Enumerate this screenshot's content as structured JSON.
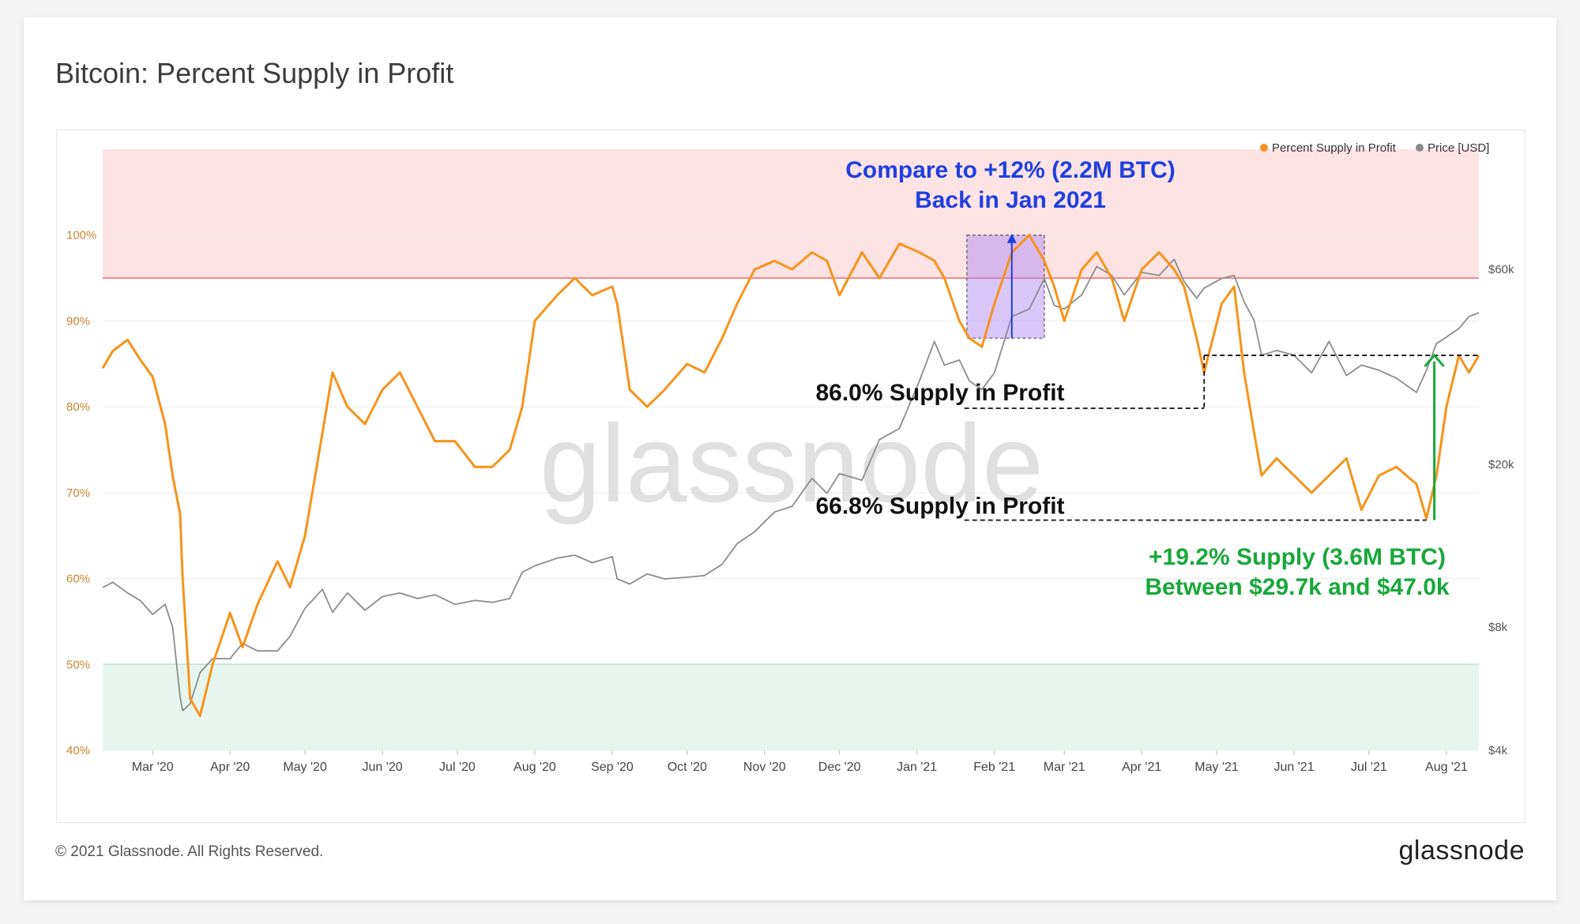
{
  "title": "Bitcoin: Percent Supply in Profit",
  "footer": {
    "copyright": "© 2021 Glassnode. All Rights Reserved.",
    "brand": "glassnode"
  },
  "watermark": "glassnode",
  "colors": {
    "supply": "#f7931a",
    "price": "#8c8c8c",
    "blue": "#1f3fe0",
    "green": "#18a83a"
  },
  "chart_data": {
    "type": "line",
    "title": "Bitcoin: Percent Supply in Profit",
    "legend": {
      "placement": "top-right",
      "items": [
        "Percent Supply in Profit",
        "Price [USD]"
      ]
    },
    "x_ticks": [
      "Mar '20",
      "Apr '20",
      "May '20",
      "Jun '20",
      "Jul '20",
      "Aug '20",
      "Sep '20",
      "Oct '20",
      "Nov '20",
      "Dec '20",
      "Jan '21",
      "Feb '21",
      "Mar '21",
      "Apr '21",
      "May '21",
      "Jun '21",
      "Jul '21",
      "Aug '21"
    ],
    "x_range": [
      "2020-02-10",
      "2021-08-14"
    ],
    "y_left": {
      "ticks": [
        "40%",
        "50%",
        "60%",
        "70%",
        "80%",
        "90%",
        "100%"
      ],
      "range": [
        40,
        110
      ]
    },
    "y_right": {
      "ticks": [
        "$4k",
        "$8k",
        "$20k",
        "$60k"
      ],
      "tick_values": [
        4000,
        8000,
        20000,
        60000
      ],
      "scale": "log",
      "range": [
        4000,
        118000
      ]
    },
    "bands": [
      {
        "from": 95,
        "to": 110,
        "color": "#fde3e3",
        "edge": "#f06a6a"
      },
      {
        "from": 40,
        "to": 50,
        "color": "#e6f6ef",
        "edge": "#6fc39b"
      }
    ],
    "series": [
      {
        "name": "Percent Supply in Profit",
        "axis": "left",
        "x": [
          "2020-02-10",
          "2020-02-14",
          "2020-02-20",
          "2020-02-25",
          "2020-03-01",
          "2020-03-06",
          "2020-03-09",
          "2020-03-12",
          "2020-03-13",
          "2020-03-16",
          "2020-03-20",
          "2020-03-25",
          "2020-04-01",
          "2020-04-06",
          "2020-04-12",
          "2020-04-20",
          "2020-04-25",
          "2020-05-01",
          "2020-05-08",
          "2020-05-12",
          "2020-05-18",
          "2020-05-25",
          "2020-06-01",
          "2020-06-08",
          "2020-06-15",
          "2020-06-22",
          "2020-06-30",
          "2020-07-08",
          "2020-07-15",
          "2020-07-22",
          "2020-07-27",
          "2020-08-01",
          "2020-08-10",
          "2020-08-17",
          "2020-08-24",
          "2020-09-01",
          "2020-09-03",
          "2020-09-08",
          "2020-09-15",
          "2020-09-22",
          "2020-10-01",
          "2020-10-08",
          "2020-10-15",
          "2020-10-21",
          "2020-10-28",
          "2020-11-05",
          "2020-11-12",
          "2020-11-20",
          "2020-11-26",
          "2020-12-01",
          "2020-12-10",
          "2020-12-17",
          "2020-12-25",
          "2021-01-02",
          "2021-01-08",
          "2021-01-12",
          "2021-01-18",
          "2021-01-22",
          "2021-01-27",
          "2021-02-01",
          "2021-02-08",
          "2021-02-15",
          "2021-02-21",
          "2021-02-25",
          "2021-03-01",
          "2021-03-08",
          "2021-03-14",
          "2021-03-20",
          "2021-03-25",
          "2021-04-01",
          "2021-04-08",
          "2021-04-14",
          "2021-04-18",
          "2021-04-23",
          "2021-04-26",
          "2021-05-03",
          "2021-05-08",
          "2021-05-12",
          "2021-05-16",
          "2021-05-19",
          "2021-05-25",
          "2021-06-01",
          "2021-06-08",
          "2021-06-15",
          "2021-06-22",
          "2021-06-28",
          "2021-07-05",
          "2021-07-12",
          "2021-07-20",
          "2021-07-24",
          "2021-07-28",
          "2021-08-01",
          "2021-08-06",
          "2021-08-10",
          "2021-08-14"
        ],
        "y": [
          84.5,
          86.5,
          87.8,
          85.5,
          83.5,
          78,
          72,
          67.5,
          60,
          46,
          44,
          50,
          56,
          52,
          57,
          62,
          59,
          65,
          77,
          84,
          80,
          78,
          82,
          84,
          80,
          76,
          76,
          73,
          73,
          75,
          80,
          90,
          93,
          95,
          93,
          94,
          92,
          82,
          80,
          82,
          85,
          84,
          88,
          92,
          96,
          97,
          96,
          98,
          97,
          93,
          98,
          95,
          99,
          98,
          97,
          95,
          90,
          88,
          87,
          92,
          98,
          100,
          97,
          94,
          90,
          96,
          98,
          95,
          90,
          96,
          98,
          96,
          94,
          88,
          84,
          92,
          94,
          84,
          77,
          72,
          74,
          72,
          70,
          72,
          74,
          68,
          72,
          73,
          71,
          67,
          72,
          80,
          86,
          84,
          86
        ],
        "line_color": "#f7931a"
      },
      {
        "name": "Price [USD]",
        "axis": "right",
        "x": [
          "2020-02-10",
          "2020-02-14",
          "2020-02-20",
          "2020-02-25",
          "2020-03-01",
          "2020-03-06",
          "2020-03-09",
          "2020-03-12",
          "2020-03-13",
          "2020-03-16",
          "2020-03-20",
          "2020-03-25",
          "2020-04-01",
          "2020-04-06",
          "2020-04-12",
          "2020-04-20",
          "2020-04-25",
          "2020-05-01",
          "2020-05-08",
          "2020-05-12",
          "2020-05-18",
          "2020-05-25",
          "2020-06-01",
          "2020-06-08",
          "2020-06-15",
          "2020-06-22",
          "2020-06-30",
          "2020-07-08",
          "2020-07-15",
          "2020-07-22",
          "2020-07-27",
          "2020-08-01",
          "2020-08-10",
          "2020-08-17",
          "2020-08-24",
          "2020-09-01",
          "2020-09-03",
          "2020-09-08",
          "2020-09-15",
          "2020-09-22",
          "2020-10-01",
          "2020-10-08",
          "2020-10-15",
          "2020-10-21",
          "2020-10-28",
          "2020-11-05",
          "2020-11-12",
          "2020-11-20",
          "2020-11-26",
          "2020-12-01",
          "2020-12-10",
          "2020-12-17",
          "2020-12-25",
          "2021-01-02",
          "2021-01-08",
          "2021-01-12",
          "2021-01-18",
          "2021-01-22",
          "2021-01-27",
          "2021-02-01",
          "2021-02-08",
          "2021-02-15",
          "2021-02-21",
          "2021-02-25",
          "2021-03-01",
          "2021-03-08",
          "2021-03-14",
          "2021-03-20",
          "2021-03-25",
          "2021-04-01",
          "2021-04-08",
          "2021-04-14",
          "2021-04-18",
          "2021-04-23",
          "2021-04-26",
          "2021-05-03",
          "2021-05-08",
          "2021-05-12",
          "2021-05-16",
          "2021-05-19",
          "2021-05-25",
          "2021-06-01",
          "2021-06-08",
          "2021-06-15",
          "2021-06-22",
          "2021-06-28",
          "2021-07-05",
          "2021-07-12",
          "2021-07-20",
          "2021-07-24",
          "2021-07-28",
          "2021-08-01",
          "2021-08-06",
          "2021-08-10",
          "2021-08-14"
        ],
        "y": [
          10000,
          10300,
          9700,
          9300,
          8600,
          9100,
          8000,
          5400,
          5000,
          5200,
          6200,
          6700,
          6700,
          7300,
          7000,
          7000,
          7600,
          8900,
          9900,
          8700,
          9700,
          8800,
          9500,
          9700,
          9400,
          9600,
          9100,
          9300,
          9200,
          9400,
          10900,
          11300,
          11800,
          12000,
          11500,
          11900,
          10500,
          10200,
          10800,
          10500,
          10600,
          10700,
          11400,
          12800,
          13700,
          15300,
          15800,
          18500,
          17000,
          19000,
          18300,
          23000,
          24500,
          32000,
          40000,
          35000,
          36000,
          32000,
          30500,
          33500,
          46000,
          48000,
          57000,
          49000,
          48000,
          52000,
          61000,
          58000,
          52000,
          59000,
          58000,
          63500,
          56000,
          51000,
          54000,
          57000,
          58000,
          50000,
          45000,
          37000,
          38000,
          37000,
          33500,
          40000,
          33000,
          35000,
          34000,
          32500,
          30000,
          34000,
          39500,
          41000,
          43000,
          46000,
          47000
        ],
        "line_color": "#8c8c8c"
      }
    ],
    "annotations": [
      {
        "id": "compare",
        "lines": [
          "Compare to +12% (2.2M BTC)",
          "Back in Jan 2021"
        ],
        "color": "#1f3fe0"
      },
      {
        "id": "high",
        "text": "86.0% Supply in Profit",
        "value": 86.0
      },
      {
        "id": "low",
        "text": "66.8% Supply in Profit",
        "value": 66.8
      },
      {
        "id": "gain",
        "lines": [
          "+19.2% Supply (3.6M BTC)",
          "Between $29.7k and $47.0k"
        ],
        "color": "#18a83a"
      }
    ],
    "highlight_box": {
      "x": [
        "2021-01-21",
        "2021-02-21"
      ],
      "y": [
        88,
        100
      ]
    },
    "blue_arrow": {
      "x": "2021-02-08",
      "y": [
        88,
        100
      ]
    },
    "green_arrow": {
      "x": "2021-07-24",
      "y": [
        66.8,
        86.0
      ]
    },
    "high_line": {
      "x": [
        "2021-01-20",
        "2021-08-14"
      ],
      "y": 86.0,
      "bracket_x": "2021-04-26"
    },
    "low_line": {
      "x": [
        "2021-01-20",
        "2021-07-24"
      ],
      "y": 66.8
    }
  }
}
